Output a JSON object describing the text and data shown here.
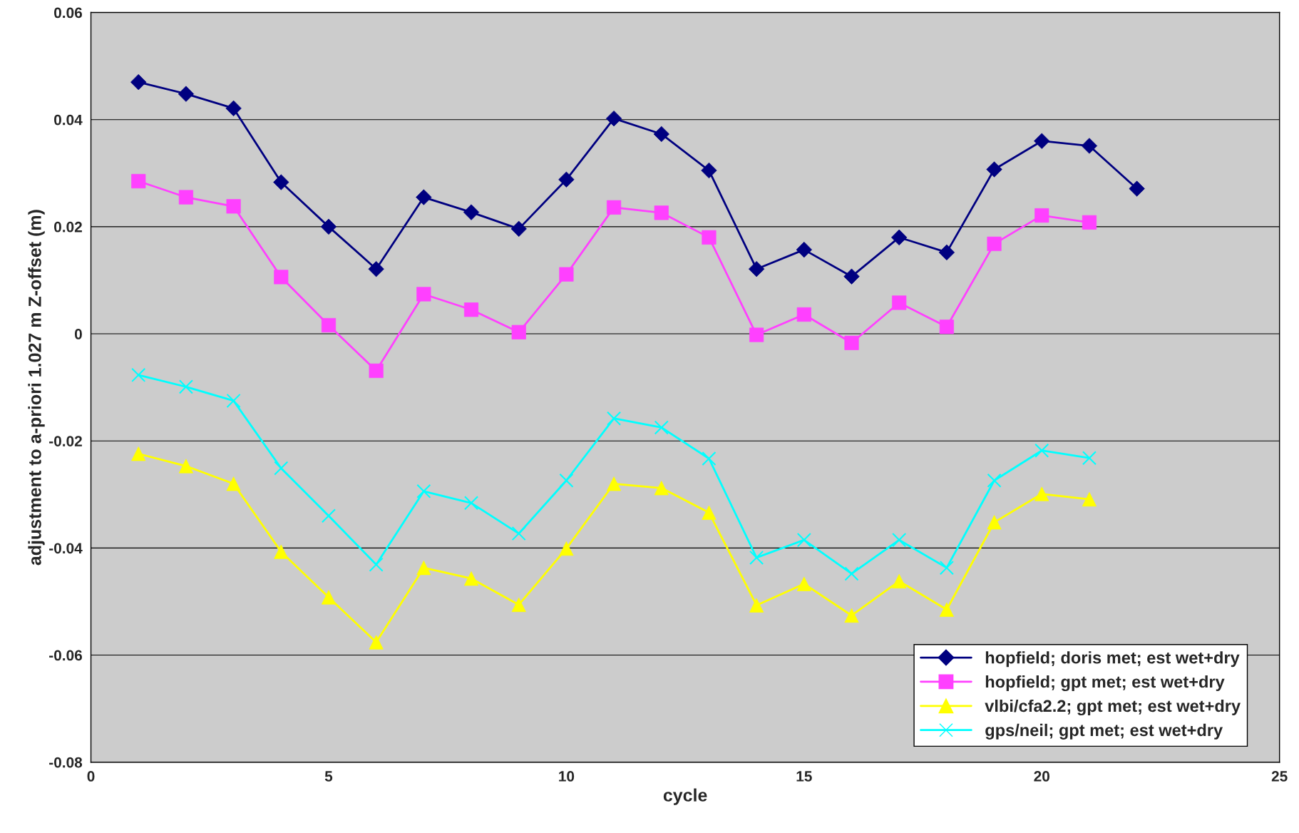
{
  "chart_data": {
    "type": "line",
    "xlabel": "cycle",
    "ylabel": "adjustment to a-priori 1.027 m Z-offset (m)",
    "xlim": [
      0,
      25
    ],
    "xticks": [
      0,
      5,
      10,
      15,
      20,
      25
    ],
    "ylim": [
      -0.08,
      0.06
    ],
    "yticks": [
      -0.08,
      -0.06,
      -0.04,
      -0.02,
      0,
      0.02,
      0.04,
      0.06
    ],
    "grid": "y",
    "legend": "bottom right",
    "series": [
      {
        "name": "hopfield; doris met; est wet+dry",
        "color": "#000080",
        "marker": "diamond",
        "x": [
          1,
          2,
          3,
          4,
          5,
          6,
          7,
          8,
          9,
          10,
          11,
          12,
          13,
          14,
          15,
          16,
          17,
          18,
          19,
          20,
          21,
          22
        ],
        "values": [
          0.047,
          0.0448,
          0.0421,
          0.0283,
          0.02,
          0.0121,
          0.0255,
          0.0227,
          0.0196,
          0.0288,
          0.0402,
          0.0373,
          0.0305,
          0.0121,
          0.0157,
          0.0107,
          0.018,
          0.0152,
          0.0307,
          0.036,
          0.0351,
          0.0271
        ]
      },
      {
        "name": "hopfield; gpt met; est wet+dry",
        "color": "#ff40ff",
        "marker": "square",
        "x": [
          1,
          2,
          3,
          4,
          5,
          6,
          7,
          8,
          9,
          10,
          11,
          12,
          13,
          14,
          15,
          16,
          17,
          18,
          19,
          20,
          21
        ],
        "values": [
          0.0285,
          0.0255,
          0.0238,
          0.0106,
          0.0016,
          -0.0069,
          0.0074,
          0.0045,
          0.0003,
          0.0111,
          0.0236,
          0.0226,
          0.018,
          -0.0002,
          0.0036,
          -0.0017,
          0.0058,
          0.0013,
          0.0168,
          0.0221,
          0.0208
        ]
      },
      {
        "name": "vlbi/cfa2.2; gpt met; est wet+dry",
        "color": "#ffff00",
        "marker": "triangle",
        "x": [
          1,
          2,
          3,
          4,
          5,
          6,
          7,
          8,
          9,
          10,
          11,
          12,
          13,
          14,
          15,
          16,
          17,
          18,
          19,
          20,
          21
        ],
        "values": [
          -0.0224,
          -0.0247,
          -0.028,
          -0.0407,
          -0.0492,
          -0.0576,
          -0.0437,
          -0.0457,
          -0.0506,
          -0.0401,
          -0.028,
          -0.0288,
          -0.0334,
          -0.0507,
          -0.0467,
          -0.0526,
          -0.0462,
          -0.0515,
          -0.0352,
          -0.0299,
          -0.0309
        ]
      },
      {
        "name": "gps/neil; gpt met; est wet+dry",
        "color": "#00ffff",
        "marker": "cross",
        "x": [
          1,
          2,
          3,
          4,
          5,
          6,
          7,
          8,
          9,
          10,
          11,
          12,
          13,
          14,
          15,
          16,
          17,
          18,
          19,
          20,
          21
        ],
        "values": [
          -0.0077,
          -0.0099,
          -0.0125,
          -0.0251,
          -0.034,
          -0.0431,
          -0.0294,
          -0.0316,
          -0.0373,
          -0.0274,
          -0.0158,
          -0.0175,
          -0.0233,
          -0.0418,
          -0.0385,
          -0.0448,
          -0.0385,
          -0.0437,
          -0.0274,
          -0.0218,
          -0.0232
        ]
      }
    ]
  }
}
